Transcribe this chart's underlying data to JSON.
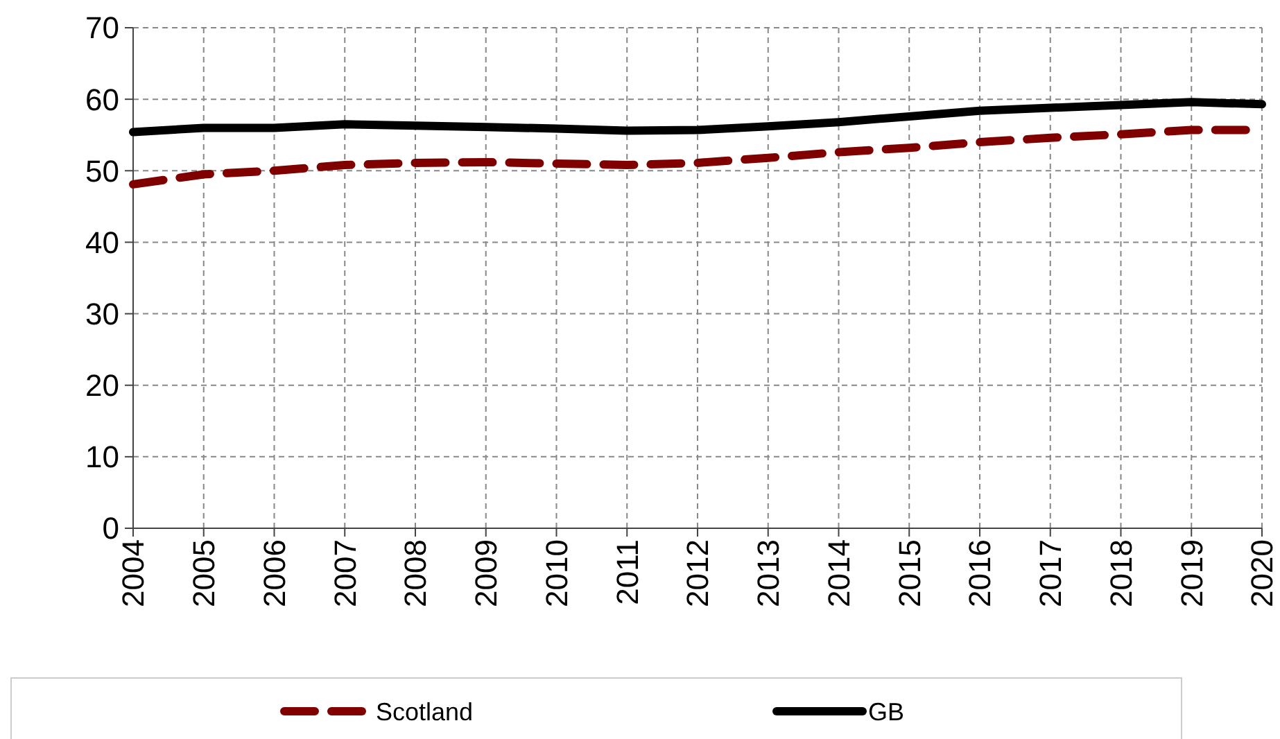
{
  "chart_data": {
    "type": "line",
    "x": [
      2004,
      2005,
      2006,
      2007,
      2008,
      2009,
      2010,
      2011,
      2012,
      2013,
      2014,
      2015,
      2016,
      2017,
      2018,
      2019,
      2020
    ],
    "xlim": [
      2004,
      2020
    ],
    "xticks": [
      2004,
      2005,
      2006,
      2007,
      2008,
      2009,
      2010,
      2011,
      2012,
      2013,
      2014,
      2015,
      2016,
      2017,
      2018,
      2019,
      2020
    ],
    "ylim": [
      0,
      70
    ],
    "yticks": [
      0,
      10,
      20,
      30,
      40,
      50,
      60,
      70
    ],
    "grid": true,
    "legend": "bottom",
    "series": [
      {
        "name": "Scotland",
        "color": "#800000",
        "line_style": "dashed",
        "values": [
          48.1,
          49.5,
          50,
          50.8,
          51.1,
          51.2,
          51,
          50.8,
          51.1,
          51.8,
          52.6,
          53.2,
          54,
          54.6,
          55.1,
          55.7,
          55.7
        ]
      },
      {
        "name": "GB",
        "color": "#000000",
        "line_style": "solid",
        "values": [
          55.4,
          56,
          56,
          56.5,
          56.3,
          56.1,
          55.9,
          55.6,
          55.7,
          56.2,
          56.8,
          57.6,
          58.4,
          58.8,
          59.2,
          59.6,
          59.3
        ]
      }
    ]
  }
}
